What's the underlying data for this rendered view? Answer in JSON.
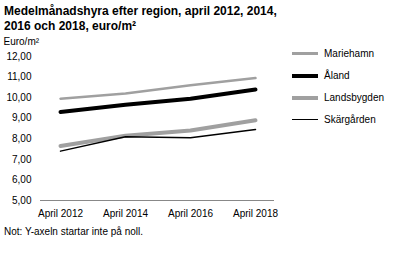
{
  "chart_data": {
    "type": "line",
    "title": "Medelmånadshyra efter region, april 2012, 2014, 2016 och 2018, euro/m²",
    "y_label": "Euro/m²",
    "note": "Not: Y-axeln startar inte på noll.",
    "categories": [
      "April 2012",
      "April 2014",
      "April 2016",
      "April 2018"
    ],
    "series": [
      {
        "name": "Mariehamn",
        "color": "#a0a0a0",
        "line_style": "medium",
        "values": [
          9.95,
          10.2,
          10.6,
          10.95
        ]
      },
      {
        "name": "Åland",
        "color": "#000000",
        "line_style": "thick",
        "values": [
          9.3,
          9.65,
          9.95,
          10.4
        ]
      },
      {
        "name": "Landsbygden",
        "color": "#a0a0a0",
        "line_style": "thick",
        "values": [
          7.65,
          8.15,
          8.4,
          8.9
        ]
      },
      {
        "name": "Skärgården",
        "color": "#000000",
        "line_style": "thin",
        "values": [
          7.4,
          8.1,
          8.05,
          8.45
        ]
      }
    ],
    "ylim": [
      5,
      12
    ],
    "yticks": [
      {
        "value": 5,
        "label": "5,00"
      },
      {
        "value": 6,
        "label": "6,00"
      },
      {
        "value": 7,
        "label": "7,00"
      },
      {
        "value": 8,
        "label": "8,00"
      },
      {
        "value": 9,
        "label": "9,00"
      },
      {
        "value": 10,
        "label": "10,00"
      },
      {
        "value": 11,
        "label": "11,00"
      },
      {
        "value": 12,
        "label": "12,00"
      }
    ],
    "grid": false,
    "legend": "right"
  }
}
